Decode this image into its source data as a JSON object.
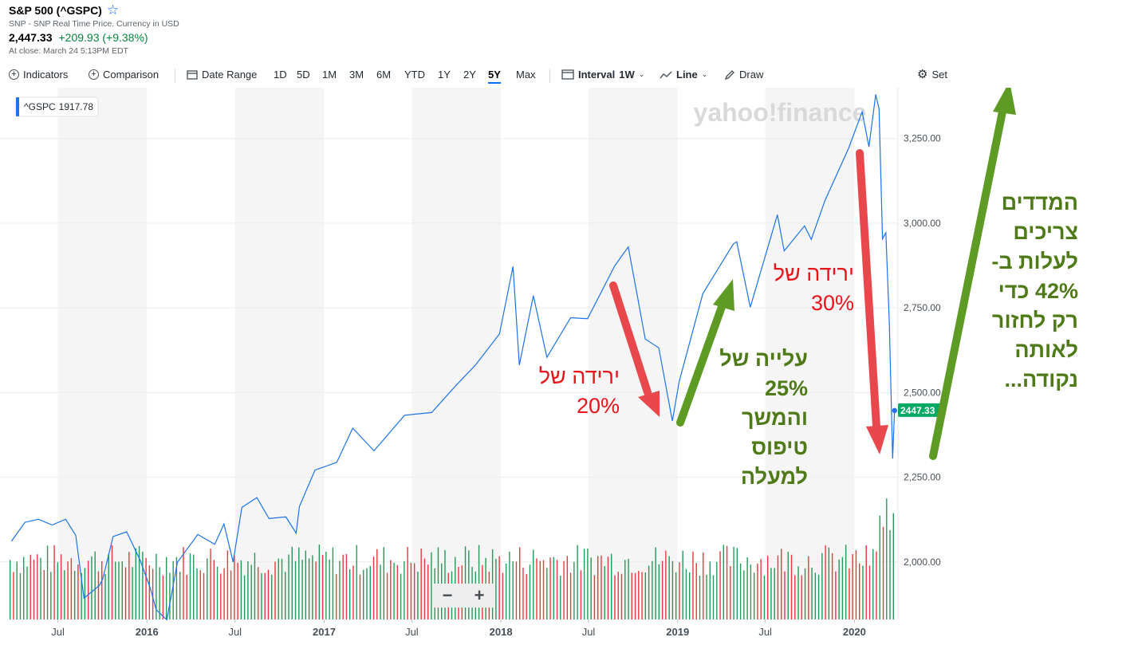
{
  "header": {
    "title": "S&P 500 (^GSPC)",
    "subtitle": "SNP - SNP Real Time Price. Currency in USD",
    "price": "2,447.33",
    "change": "+209.93 (+9.38%)",
    "close_time": "At close: March 24 5:13PM EDT"
  },
  "toolbar": {
    "indicators": "Indicators",
    "comparison": "Comparison",
    "date_range": "Date Range",
    "ranges": [
      "1D",
      "5D",
      "1M",
      "3M",
      "6M",
      "YTD",
      "1Y",
      "2Y",
      "5Y",
      "Max"
    ],
    "active_range": "5Y",
    "interval_label": "Interval",
    "interval_value": "1W",
    "chart_type": "Line",
    "draw": "Draw",
    "settings": "Set"
  },
  "legend_tag": {
    "symbol": "^GSPC",
    "value": "1917.78"
  },
  "zoom": {
    "minus": "−",
    "plus": "+"
  },
  "watermark": "yahoo!finance",
  "annotations": {
    "drop20": [
      "ירידה של",
      "20%"
    ],
    "rise25": [
      "עלייה של",
      "25%",
      "והמשך",
      "טיפוס",
      "למעלה"
    ],
    "drop30": [
      "ירידה של",
      "30%"
    ],
    "recover42": [
      "המדדים",
      "צריכים",
      "לעלות ב-",
      "42% כדי",
      "רק לחזור",
      "לאותה",
      "נקודה..."
    ]
  },
  "colors": {
    "line": "#1a73e8",
    "up_volume": "#00873c",
    "down_volume": "#e8141c",
    "annotation_red": "#e8141c",
    "annotation_green": "#5e9b25",
    "price_tag": "#00a866"
  },
  "chart_data": {
    "type": "line",
    "series": [
      {
        "name": "^GSPC",
        "points": [
          [
            "2015-03-27",
            2061
          ],
          [
            "2015-04-24",
            2117
          ],
          [
            "2015-05-22",
            2126
          ],
          [
            "2015-06-19",
            2109
          ],
          [
            "2015-07-17",
            2126
          ],
          [
            "2015-08-07",
            2078
          ],
          [
            "2015-08-24",
            1893
          ],
          [
            "2015-09-25",
            1931
          ],
          [
            "2015-10-02",
            1951
          ],
          [
            "2015-10-23",
            2075
          ],
          [
            "2015-11-20",
            2089
          ],
          [
            "2015-12-18",
            2005
          ],
          [
            "2016-01-08",
            1922
          ],
          [
            "2016-01-20",
            1859
          ],
          [
            "2016-02-11",
            1829
          ],
          [
            "2016-03-04",
            1999
          ],
          [
            "2016-04-15",
            2081
          ],
          [
            "2016-05-20",
            2052
          ],
          [
            "2016-06-08",
            2112
          ],
          [
            "2016-06-27",
            2000
          ],
          [
            "2016-07-15",
            2161
          ],
          [
            "2016-08-15",
            2190
          ],
          [
            "2016-09-09",
            2128
          ],
          [
            "2016-10-14",
            2133
          ],
          [
            "2016-11-04",
            2085
          ],
          [
            "2016-11-11",
            2164
          ],
          [
            "2016-12-13",
            2271
          ],
          [
            "2017-01-27",
            2294
          ],
          [
            "2017-03-01",
            2395
          ],
          [
            "2017-04-14",
            2328
          ],
          [
            "2017-06-16",
            2433
          ],
          [
            "2017-08-11",
            2441
          ],
          [
            "2017-09-29",
            2519
          ],
          [
            "2017-11-10",
            2582
          ],
          [
            "2017-12-29",
            2673
          ],
          [
            "2018-01-26",
            2872
          ],
          [
            "2018-02-08",
            2581
          ],
          [
            "2018-03-09",
            2786
          ],
          [
            "2018-04-06",
            2604
          ],
          [
            "2018-05-25",
            2721
          ],
          [
            "2018-06-29",
            2718
          ],
          [
            "2018-08-24",
            2874
          ],
          [
            "2018-09-21",
            2930
          ],
          [
            "2018-10-12",
            2767
          ],
          [
            "2018-10-26",
            2658
          ],
          [
            "2018-11-23",
            2632
          ],
          [
            "2018-12-21",
            2416
          ],
          [
            "2019-01-04",
            2532
          ],
          [
            "2019-02-22",
            2792
          ],
          [
            "2019-04-26",
            2939
          ],
          [
            "2019-05-03",
            2945
          ],
          [
            "2019-05-31",
            2752
          ],
          [
            "2019-07-26",
            3025
          ],
          [
            "2019-08-09",
            2918
          ],
          [
            "2019-09-20",
            2992
          ],
          [
            "2019-10-04",
            2952
          ],
          [
            "2019-11-01",
            3066
          ],
          [
            "2019-12-20",
            3221
          ],
          [
            "2020-01-17",
            3329
          ],
          [
            "2020-01-31",
            3225
          ],
          [
            "2020-02-14",
            3380
          ],
          [
            "2020-02-21",
            3337
          ],
          [
            "2020-02-28",
            2954
          ],
          [
            "2020-03-06",
            2972
          ],
          [
            "2020-03-13",
            2711
          ],
          [
            "2020-03-20",
            2305
          ],
          [
            "2020-03-24",
            2447
          ]
        ]
      },
      {
        "name": "Volume",
        "type": "bar",
        "values": "weekly volume bars, mostly green with red on down weeks; largest spikes in March 2020"
      }
    ],
    "x_ticks": [
      "Jul",
      "2016",
      "Jul",
      "2017",
      "Jul",
      "2018",
      "Jul",
      "2019",
      "Jul",
      "2020"
    ],
    "y_ticks": [
      "2,000.00",
      "2,250.00",
      "2,500.00",
      "2,750.00",
      "3,000.00",
      "3,250.00"
    ],
    "ylim": [
      1830,
      3400
    ],
    "last_price_label": "2447.33",
    "grid": true,
    "shaded_bands": "alternate half-years"
  }
}
